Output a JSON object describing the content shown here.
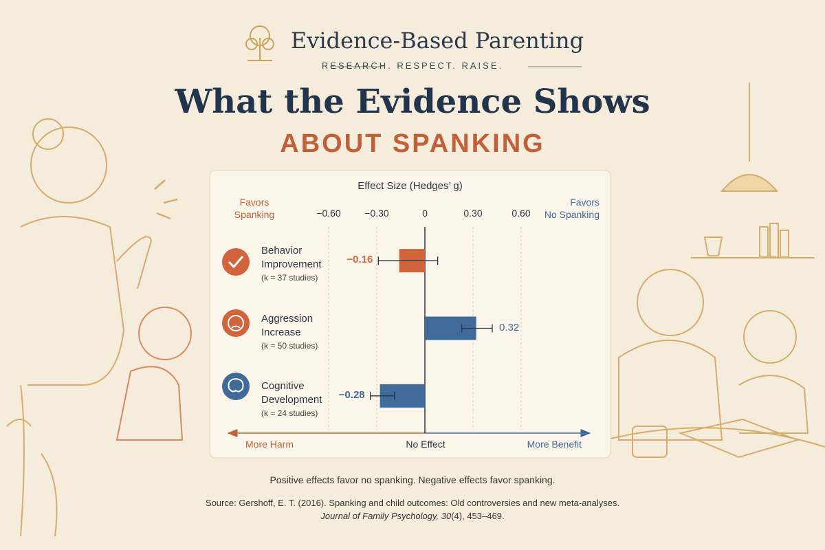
{
  "header": {
    "brand": "Evidence-Based Parenting",
    "tagline": "RESEARCH. RESPECT. RAISE.",
    "title": "What the Evidence Shows",
    "subtitle": "ABOUT SPANKING"
  },
  "chart_data": {
    "type": "bar",
    "orientation": "horizontal",
    "x_label": "Effect Size (Hedges’ g)",
    "left_label": [
      "Favors",
      "Spanking"
    ],
    "right_label": [
      "Favors",
      "No Spanking"
    ],
    "categories": [
      "Behavior Improvement",
      "Aggression Increase",
      "Cognitive Development"
    ],
    "category_notes": [
      "(k = 37 studies)",
      "(k = 50 studies)",
      "(k = 24 studies)"
    ],
    "values": [
      -0.16,
      0.32,
      -0.28
    ],
    "value_labels": [
      "−0.16",
      "0.32",
      "−0.28"
    ],
    "ci": [
      [
        -0.29,
        0.08
      ],
      [
        0.23,
        0.42
      ],
      [
        -0.34,
        -0.19
      ]
    ],
    "colors": [
      "#d0643c",
      "#3f6a9a",
      "#3f6a9a"
    ],
    "xlim": [
      -0.6,
      0.6
    ],
    "xticks": [
      {
        "value": -0.6,
        "label": "−0.60"
      },
      {
        "value": -0.3,
        "label": "−0.30"
      },
      0,
      {
        "value": 0.3,
        "label": "0.30"
      },
      {
        "value": 0.6,
        "label": "0.60"
      }
    ],
    "grid": true,
    "bottom_labels": [
      "More Harm",
      "No Effect",
      "More Benefit"
    ]
  },
  "footer": {
    "note": "Positive effects favor no spanking. Negative effects favor spanking.",
    "source": "Source: Gershoff, E. T. (2016). Spanking and child outcomes: Old controversies and new meta-analyses.",
    "journal": "Journal of Family Psychology, 30",
    "pages": "(4), 453–469."
  }
}
